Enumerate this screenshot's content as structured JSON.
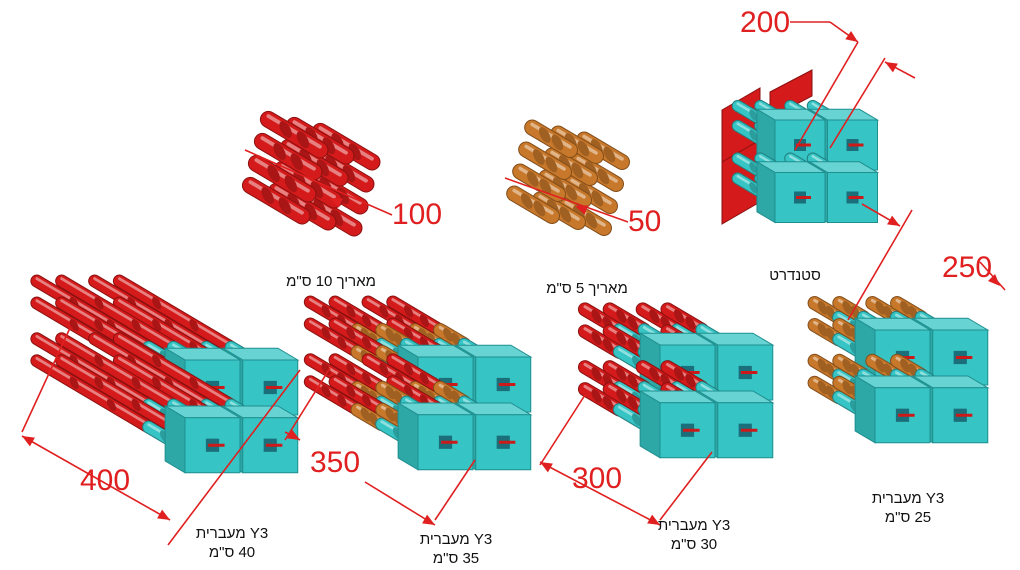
{
  "colors": {
    "red_rebar": "#d41a1a",
    "orange_rebar": "#c8782a",
    "cyan_coupler": "#36c4c4",
    "dimension": "#e02020",
    "caption_text": "#111111"
  },
  "dimensions": {
    "d200": "200",
    "d100": "100",
    "d50": "50",
    "d250": "250",
    "d400": "400",
    "d350": "350",
    "d300": "300"
  },
  "captions": {
    "ext10": "מאריך 10 ס\"מ",
    "ext5": "מאריך 5 ס\"מ",
    "standard": "סטנדרט",
    "y3_25_l1": "Y3 מעברית",
    "y3_25_l2": "25 ס\"מ",
    "y3_30_l1": "Y3 מעברית",
    "y3_30_l2": "30 ס\"מ",
    "y3_35_l1": "Y3 מעברית",
    "y3_35_l2": "35 ס\"מ",
    "y3_40_l1": "Y3 מעברית",
    "y3_40_l2": "40  ס\"מ"
  }
}
